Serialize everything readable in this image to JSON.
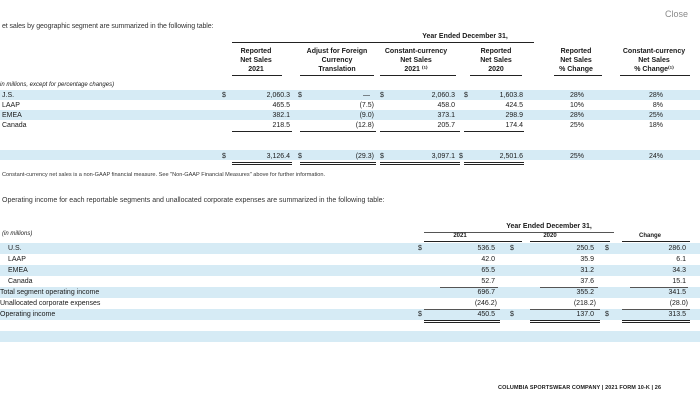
{
  "close_label": "Close",
  "intro": "et sales by geographic segment are summarized in the following table:",
  "t1": {
    "period_header": "Year Ended December 31,",
    "col_reported_2021": [
      "Reported",
      "Net Sales",
      "2021"
    ],
    "col_adjust": [
      "Adjust for Foreign",
      "Currency",
      "Translation"
    ],
    "col_constant": [
      "Constant-currency",
      "Net Sales",
      "2021 ⁽¹⁾"
    ],
    "col_reported_2020": [
      "Reported",
      "Net Sales",
      "2020"
    ],
    "col_change": [
      "Reported",
      "Net Sales",
      "% Change"
    ],
    "col_const_change": [
      "Constant-currency",
      "Net Sales",
      "% Change⁽¹⁾"
    ],
    "unit_note": "in millions, except for percentage changes)",
    "dollar": "$",
    "rows": [
      {
        "label": "J.S.",
        "rep21": "2,060.3",
        "adj": "—",
        "const": "2,060.3",
        "rep20": "1,603.8",
        "chg": "28%",
        "cchg": "28%"
      },
      {
        "label": "LAAP",
        "rep21": "465.5",
        "adj": "(7.5)",
        "const": "458.0",
        "rep20": "424.5",
        "chg": "10%",
        "cchg": "8%"
      },
      {
        "label": "EMEA",
        "rep21": "382.1",
        "adj": "(9.0)",
        "const": "373.1",
        "rep20": "298.9",
        "chg": "28%",
        "cchg": "25%"
      },
      {
        "label": "Canada",
        "rep21": "218.5",
        "adj": "(12.8)",
        "const": "205.7",
        "rep20": "174.4",
        "chg": "25%",
        "cchg": "18%"
      },
      {
        "label": "",
        "rep21": "3,126.4",
        "adj": "(29.3)",
        "const": "3,097.1",
        "rep20": "2,501.6",
        "chg": "25%",
        "cchg": "24%"
      }
    ],
    "footnote": "Constant-currency net sales is a non-GAAP financial measure. See \"Non-GAAP Financial Measures\" above for further information."
  },
  "opinc_intro": "Operating income for each reportable segments and unallocated corporate expenses are summarized in the following table:",
  "t2": {
    "period_header": "Year Ended December 31,",
    "unit_note": "(in millions)",
    "col_2021": "2021",
    "col_2020": "2020",
    "col_change": "Change",
    "dollar": "$",
    "rows": [
      {
        "label": "U.S.",
        "v21": "536.5",
        "v20": "250.5",
        "chg": "286.0"
      },
      {
        "label": "LAAP",
        "v21": "42.0",
        "v20": "35.9",
        "chg": "6.1"
      },
      {
        "label": "EMEA",
        "v21": "65.5",
        "v20": "31.2",
        "chg": "34.3"
      },
      {
        "label": "Canada",
        "v21": "52.7",
        "v20": "37.6",
        "chg": "15.1"
      },
      {
        "label": "Total segment operating income",
        "v21": "696.7",
        "v20": "355.2",
        "chg": "341.5"
      },
      {
        "label": "Unallocated corporate expenses",
        "v21": "(246.2)",
        "v20": "(218.2)",
        "chg": "(28.0)"
      },
      {
        "label": "Operating income",
        "v21": "450.5",
        "v20": "137.0",
        "chg": "313.5"
      }
    ]
  },
  "footer": "COLUMBIA SPORTSWEAR COMPANY | 2021 FORM 10-K | 26"
}
